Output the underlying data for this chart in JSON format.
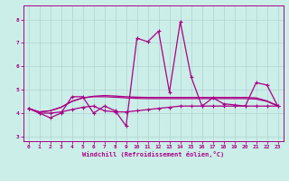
{
  "xlabel": "Windchill (Refroidissement éolien,°C)",
  "xlim": [
    -0.5,
    23.5
  ],
  "ylim": [
    2.8,
    8.6
  ],
  "yticks": [
    3,
    4,
    5,
    6,
    7,
    8
  ],
  "xticks": [
    0,
    1,
    2,
    3,
    4,
    5,
    6,
    7,
    8,
    9,
    10,
    11,
    12,
    13,
    14,
    15,
    16,
    17,
    18,
    19,
    20,
    21,
    22,
    23
  ],
  "bg_color": "#cceee8",
  "grid_color": "#aacccc",
  "line_color": "#aa0088",
  "series_spiky": [
    4.2,
    4.0,
    3.8,
    4.0,
    4.7,
    4.7,
    4.0,
    4.3,
    4.1,
    3.45,
    7.2,
    7.05,
    7.5,
    4.9,
    7.9,
    5.55,
    4.3,
    4.65,
    4.4,
    4.35,
    4.3,
    5.3,
    5.2,
    4.3
  ],
  "series_flat": [
    4.2,
    4.0,
    4.0,
    4.05,
    4.15,
    4.25,
    4.3,
    4.1,
    4.05,
    4.05,
    4.1,
    4.15,
    4.2,
    4.25,
    4.3,
    4.3,
    4.3,
    4.3,
    4.3,
    4.3,
    4.3,
    4.3,
    4.3,
    4.3
  ],
  "series_rise1": [
    4.2,
    4.05,
    4.1,
    4.25,
    4.5,
    4.65,
    4.7,
    4.7,
    4.68,
    4.65,
    4.63,
    4.62,
    4.62,
    4.62,
    4.62,
    4.62,
    4.62,
    4.62,
    4.62,
    4.62,
    4.62,
    4.6,
    4.5,
    4.3
  ],
  "series_rise2": [
    4.2,
    4.05,
    4.1,
    4.25,
    4.5,
    4.65,
    4.72,
    4.75,
    4.73,
    4.7,
    4.68,
    4.67,
    4.67,
    4.67,
    4.67,
    4.67,
    4.67,
    4.67,
    4.67,
    4.67,
    4.67,
    4.65,
    4.52,
    4.32
  ]
}
